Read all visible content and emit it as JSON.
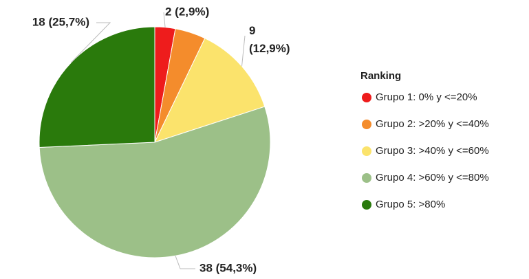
{
  "chart_data": {
    "type": "pie",
    "legend_title": "Ranking",
    "categories": [
      "Grupo 1: 0% y <=20%",
      "Grupo 2: >20% y <=40%",
      "Grupo 3: >40% y <=60%",
      "Grupo 4: >60% y <=80%",
      "Grupo 5: >80%"
    ],
    "values": [
      2,
      3,
      9,
      38,
      18
    ],
    "value_labels": [
      "2 (2,9%)",
      null,
      "9 (12,9%)",
      "38 (54,3%)",
      "18 (25,7%)"
    ],
    "colors": [
      "#ee1c1c",
      "#f48c2c",
      "#fbe36c",
      "#9cc088",
      "#2a7a0c"
    ],
    "legend": "right"
  }
}
